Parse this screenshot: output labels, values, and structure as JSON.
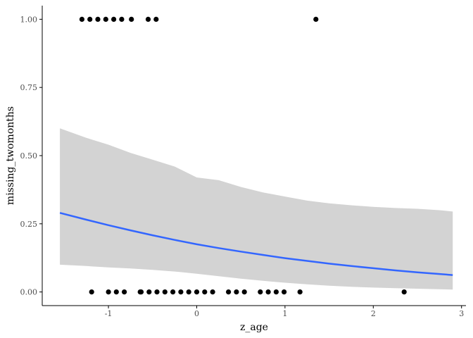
{
  "chart_data": {
    "type": "scatter",
    "title": "",
    "xlabel": "z_age",
    "ylabel": "missing_twomonths",
    "xlim": [
      -1.75,
      3.05
    ],
    "ylim": [
      -0.05,
      1.05
    ],
    "x_ticks": [
      -1,
      0,
      1,
      2,
      3
    ],
    "x_tick_labels": [
      "-1",
      "0",
      "1",
      "2",
      "3"
    ],
    "y_ticks": [
      0,
      0.25,
      0.5,
      0.75,
      1
    ],
    "y_tick_labels": [
      "0.00",
      "0.25",
      "0.50",
      "0.75",
      "1.00"
    ],
    "grid": false,
    "legend": "none",
    "colors": {
      "points": "#000000",
      "fit_line": "#3366FF",
      "ribbon": "#D3D3D3",
      "axis": "#000000",
      "tick_text": "#4D4D4D"
    },
    "points": {
      "x": [
        -1.3,
        -1.21,
        -1.12,
        -1.03,
        -0.94,
        -0.85,
        -0.74,
        -0.55,
        -0.46,
        1.35,
        -1.19,
        -1.0,
        -0.91,
        -0.82,
        -0.64,
        -0.63,
        -0.54,
        -0.45,
        -0.36,
        -0.27,
        -0.18,
        -0.09,
        0.0,
        0.09,
        0.18,
        0.36,
        0.45,
        0.54,
        0.72,
        0.81,
        0.9,
        0.99,
        1.17,
        2.35
      ],
      "y": [
        1,
        1,
        1,
        1,
        1,
        1,
        1,
        1,
        1,
        1,
        0,
        0,
        0,
        0,
        0,
        0,
        0,
        0,
        0,
        0,
        0,
        0,
        0,
        0,
        0,
        0,
        0,
        0,
        0,
        0,
        0,
        0,
        0,
        0
      ]
    },
    "fit": {
      "method": "logistic",
      "x": [
        -1.55,
        -1.25,
        -1.0,
        -0.75,
        -0.5,
        -0.25,
        0.0,
        0.25,
        0.5,
        0.75,
        1.0,
        1.25,
        1.5,
        1.75,
        2.0,
        2.25,
        2.5,
        2.75,
        2.9
      ],
      "y": [
        0.29,
        0.265,
        0.245,
        0.226,
        0.208,
        0.191,
        0.175,
        0.161,
        0.148,
        0.136,
        0.124,
        0.114,
        0.104,
        0.095,
        0.087,
        0.079,
        0.072,
        0.066,
        0.062
      ],
      "lower": [
        0.1,
        0.095,
        0.09,
        0.086,
        0.081,
        0.075,
        0.067,
        0.058,
        0.049,
        0.041,
        0.034,
        0.028,
        0.023,
        0.019,
        0.016,
        0.014,
        0.012,
        0.01,
        0.009
      ],
      "upper": [
        0.6,
        0.565,
        0.54,
        0.51,
        0.485,
        0.46,
        0.42,
        0.41,
        0.385,
        0.365,
        0.35,
        0.335,
        0.325,
        0.318,
        0.312,
        0.308,
        0.305,
        0.3,
        0.295
      ]
    }
  }
}
